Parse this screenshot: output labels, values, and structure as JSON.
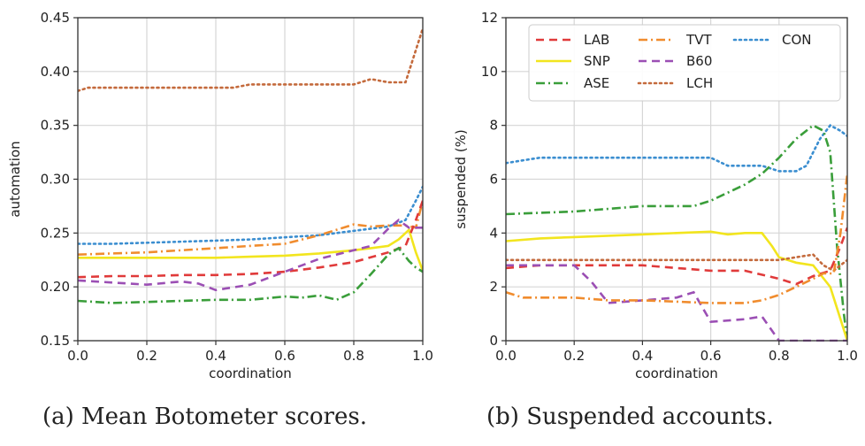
{
  "chart_data": [
    {
      "type": "line",
      "caption": "(a) Mean Botometer scores.",
      "xlabel": "coordination",
      "ylabel": "automation",
      "xlim": [
        0.0,
        1.0
      ],
      "ylim": [
        0.15,
        0.45
      ],
      "xticks": [
        "0.0",
        "0.2",
        "0.4",
        "0.6",
        "0.8",
        "1.0"
      ],
      "xtick_values": [
        0.0,
        0.2,
        0.4,
        0.6,
        0.8,
        1.0
      ],
      "yticks": [
        "0.15",
        "0.20",
        "0.25",
        "0.30",
        "0.35",
        "0.40",
        "0.45"
      ],
      "ytick_values": [
        0.15,
        0.2,
        0.25,
        0.3,
        0.35,
        0.4,
        0.45
      ],
      "grid": true,
      "series": [
        {
          "key": "LCH",
          "color": "#c46a3c",
          "dash": "dotted",
          "x": [
            0.0,
            0.03,
            0.1,
            0.2,
            0.3,
            0.4,
            0.45,
            0.5,
            0.6,
            0.7,
            0.8,
            0.85,
            0.9,
            0.95,
            0.98,
            1.0
          ],
          "y": [
            0.382,
            0.385,
            0.385,
            0.385,
            0.385,
            0.385,
            0.385,
            0.388,
            0.388,
            0.388,
            0.388,
            0.393,
            0.39,
            0.39,
            0.42,
            0.44
          ]
        },
        {
          "key": "CON",
          "color": "#3b8ed0",
          "dash": "dotted",
          "x": [
            0.0,
            0.1,
            0.2,
            0.3,
            0.4,
            0.5,
            0.6,
            0.7,
            0.8,
            0.9,
            0.95,
            0.98,
            1.0
          ],
          "y": [
            0.24,
            0.24,
            0.241,
            0.242,
            0.243,
            0.244,
            0.246,
            0.248,
            0.252,
            0.256,
            0.262,
            0.28,
            0.293
          ]
        },
        {
          "key": "TVT",
          "color": "#f08c2e",
          "dash": "dashdot",
          "x": [
            0.0,
            0.1,
            0.2,
            0.3,
            0.4,
            0.5,
            0.6,
            0.7,
            0.8,
            0.85,
            0.9,
            0.95,
            0.98,
            1.0
          ],
          "y": [
            0.23,
            0.231,
            0.232,
            0.234,
            0.236,
            0.238,
            0.24,
            0.248,
            0.258,
            0.256,
            0.257,
            0.257,
            0.255,
            0.28
          ]
        },
        {
          "key": "SNP",
          "color": "#f2e51e",
          "dash": "solid",
          "x": [
            0.0,
            0.1,
            0.2,
            0.3,
            0.4,
            0.5,
            0.6,
            0.7,
            0.8,
            0.85,
            0.9,
            0.93,
            0.96,
            0.98,
            1.0
          ],
          "y": [
            0.227,
            0.227,
            0.227,
            0.227,
            0.227,
            0.228,
            0.229,
            0.231,
            0.234,
            0.236,
            0.238,
            0.244,
            0.253,
            0.232,
            0.215
          ]
        },
        {
          "key": "LAB",
          "color": "#e03a3a",
          "dash": "dashed",
          "x": [
            0.0,
            0.1,
            0.2,
            0.3,
            0.4,
            0.5,
            0.6,
            0.7,
            0.8,
            0.9,
            0.95,
            0.98,
            1.0
          ],
          "y": [
            0.209,
            0.21,
            0.21,
            0.211,
            0.211,
            0.212,
            0.214,
            0.218,
            0.223,
            0.232,
            0.238,
            0.262,
            0.28
          ]
        },
        {
          "key": "B60",
          "color": "#9b4fb4",
          "dash": "dashed",
          "x": [
            0.0,
            0.1,
            0.2,
            0.3,
            0.35,
            0.4,
            0.5,
            0.6,
            0.7,
            0.8,
            0.85,
            0.9,
            0.93,
            0.96,
            0.98,
            1.0
          ],
          "y": [
            0.206,
            0.204,
            0.202,
            0.205,
            0.203,
            0.197,
            0.202,
            0.214,
            0.226,
            0.234,
            0.238,
            0.254,
            0.262,
            0.255,
            0.255,
            0.255
          ]
        },
        {
          "key": "ASE",
          "color": "#3a9e3a",
          "dash": "dashdot",
          "x": [
            0.0,
            0.1,
            0.2,
            0.3,
            0.4,
            0.5,
            0.6,
            0.65,
            0.7,
            0.75,
            0.8,
            0.85,
            0.9,
            0.93,
            0.96,
            0.98,
            1.0
          ],
          "y": [
            0.187,
            0.185,
            0.186,
            0.187,
            0.188,
            0.188,
            0.191,
            0.19,
            0.192,
            0.188,
            0.195,
            0.212,
            0.23,
            0.236,
            0.224,
            0.218,
            0.214
          ]
        }
      ]
    },
    {
      "type": "line",
      "caption": "(b) Suspended accounts.",
      "xlabel": "coordination",
      "ylabel": "suspended (%)",
      "xlim": [
        0.0,
        1.0
      ],
      "ylim": [
        0,
        12
      ],
      "xticks": [
        "0.0",
        "0.2",
        "0.4",
        "0.6",
        "0.8",
        "1.0"
      ],
      "xtick_values": [
        0.0,
        0.2,
        0.4,
        0.6,
        0.8,
        1.0
      ],
      "yticks": [
        "0",
        "2",
        "4",
        "6",
        "8",
        "10",
        "12"
      ],
      "ytick_values": [
        0,
        2,
        4,
        6,
        8,
        10,
        12
      ],
      "grid": true,
      "legend": {
        "location": "top",
        "columns": 3,
        "order": [
          "LAB",
          "SNP",
          "ASE",
          "TVT",
          "B60",
          "LCH",
          "CON"
        ]
      },
      "series": [
        {
          "key": "CON",
          "color": "#3b8ed0",
          "dash": "dotted",
          "x": [
            0.0,
            0.05,
            0.1,
            0.2,
            0.3,
            0.4,
            0.5,
            0.6,
            0.65,
            0.7,
            0.75,
            0.8,
            0.85,
            0.88,
            0.92,
            0.95,
            0.98,
            1.0
          ],
          "y": [
            6.6,
            6.7,
            6.8,
            6.8,
            6.8,
            6.8,
            6.8,
            6.8,
            6.5,
            6.5,
            6.5,
            6.3,
            6.3,
            6.5,
            7.5,
            8.0,
            7.8,
            7.6
          ]
        },
        {
          "key": "ASE",
          "color": "#3a9e3a",
          "dash": "dashdot",
          "x": [
            0.0,
            0.1,
            0.2,
            0.3,
            0.4,
            0.5,
            0.55,
            0.6,
            0.65,
            0.7,
            0.75,
            0.8,
            0.85,
            0.9,
            0.93,
            0.95,
            0.97,
            0.99,
            1.0
          ],
          "y": [
            4.7,
            4.75,
            4.8,
            4.9,
            5.0,
            5.0,
            5.0,
            5.2,
            5.5,
            5.8,
            6.2,
            6.8,
            7.5,
            8.0,
            7.8,
            7.0,
            3.5,
            1.0,
            0.0
          ]
        },
        {
          "key": "SNP",
          "color": "#f2e51e",
          "dash": "solid",
          "x": [
            0.0,
            0.1,
            0.2,
            0.3,
            0.4,
            0.5,
            0.6,
            0.65,
            0.7,
            0.75,
            0.78,
            0.8,
            0.85,
            0.9,
            0.95,
            0.98,
            1.0
          ],
          "y": [
            3.7,
            3.8,
            3.85,
            3.9,
            3.95,
            4.0,
            4.05,
            3.95,
            4.0,
            4.0,
            3.5,
            3.1,
            2.9,
            2.8,
            2.0,
            0.8,
            0.0
          ]
        },
        {
          "key": "LCH",
          "color": "#c46a3c",
          "dash": "dotted",
          "x": [
            0.0,
            0.1,
            0.2,
            0.3,
            0.4,
            0.5,
            0.6,
            0.7,
            0.8,
            0.85,
            0.9,
            0.93,
            0.96,
            0.98,
            1.0
          ],
          "y": [
            3.0,
            3.0,
            3.0,
            3.0,
            3.0,
            3.0,
            3.0,
            3.0,
            3.0,
            3.1,
            3.2,
            2.8,
            2.6,
            2.8,
            3.0
          ]
        },
        {
          "key": "LAB",
          "color": "#e03a3a",
          "dash": "dashed",
          "x": [
            0.0,
            0.1,
            0.2,
            0.3,
            0.4,
            0.5,
            0.6,
            0.7,
            0.8,
            0.85,
            0.9,
            0.95,
            0.98,
            1.0
          ],
          "y": [
            2.7,
            2.8,
            2.8,
            2.8,
            2.8,
            2.7,
            2.6,
            2.6,
            2.3,
            2.1,
            2.4,
            2.6,
            3.5,
            4.2
          ]
        },
        {
          "key": "B60",
          "color": "#9b4fb4",
          "dash": "dashed",
          "x": [
            0.0,
            0.1,
            0.2,
            0.25,
            0.3,
            0.4,
            0.5,
            0.55,
            0.6,
            0.7,
            0.75,
            0.8,
            0.85,
            0.9,
            0.95,
            1.0
          ],
          "y": [
            2.8,
            2.8,
            2.8,
            2.2,
            1.4,
            1.5,
            1.6,
            1.8,
            0.7,
            0.8,
            0.9,
            0.0,
            0.0,
            0.0,
            0.0,
            0.0
          ]
        },
        {
          "key": "TVT",
          "color": "#f08c2e",
          "dash": "dashdot",
          "x": [
            0.0,
            0.05,
            0.1,
            0.2,
            0.3,
            0.4,
            0.5,
            0.6,
            0.7,
            0.75,
            0.8,
            0.85,
            0.9,
            0.93,
            0.96,
            0.98,
            1.0
          ],
          "y": [
            1.8,
            1.6,
            1.6,
            1.6,
            1.5,
            1.5,
            1.45,
            1.4,
            1.4,
            1.5,
            1.7,
            2.0,
            2.3,
            2.5,
            2.5,
            4.0,
            6.2
          ]
        }
      ]
    }
  ]
}
